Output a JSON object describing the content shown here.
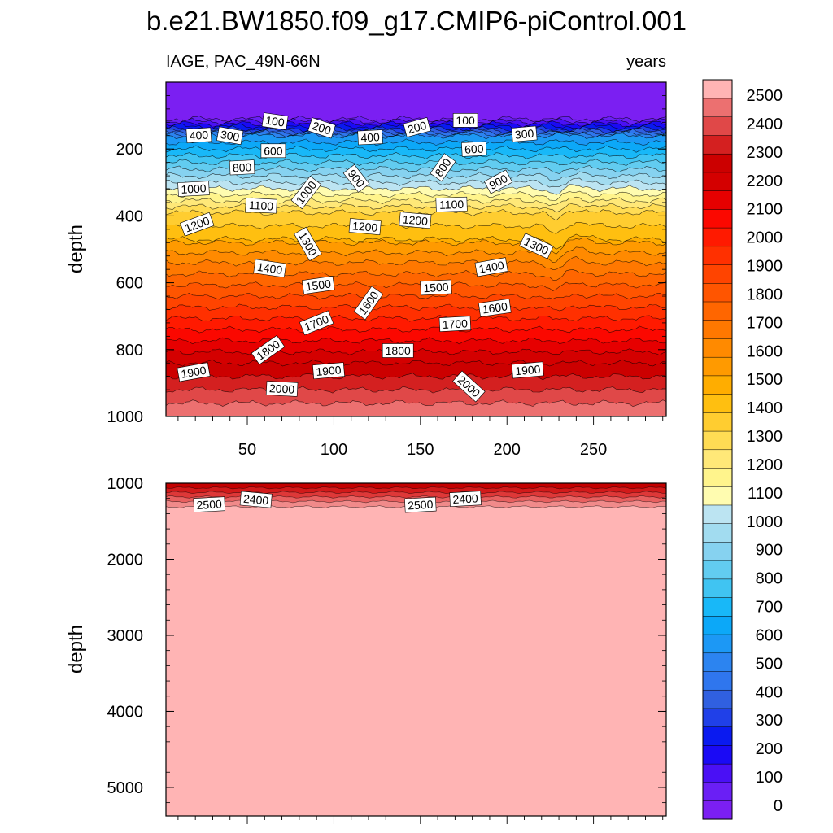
{
  "chart_data": {
    "type": "heatmap",
    "title": "b.e21.BW1850.f09_g17.CMIP6-piControl.001",
    "variable_label": "IAGE, PAC_49N-66N",
    "units_label": "years",
    "x_range": [
      3,
      292
    ],
    "x_ticks": [
      50,
      100,
      150,
      200,
      250
    ],
    "x_tick_labels": [
      "50",
      "100",
      "150",
      "200",
      "250"
    ],
    "colorbar": {
      "levels": [
        0,
        100,
        200,
        300,
        400,
        500,
        600,
        700,
        800,
        900,
        1000,
        1100,
        1200,
        1300,
        1400,
        1500,
        1600,
        1700,
        1800,
        1900,
        2000,
        2100,
        2200,
        2300,
        2400,
        2500
      ],
      "labels": [
        "0",
        "100",
        "200",
        "300",
        "400",
        "500",
        "600",
        "700",
        "800",
        "900",
        "1000",
        "1100",
        "1200",
        "1300",
        "1400",
        "1500",
        "1600",
        "1700",
        "1800",
        "1900",
        "2000",
        "2100",
        "2200",
        "2300",
        "2400",
        "2500"
      ]
    },
    "colors": [
      "#7b1ff2",
      "#6a1ff5",
      "#4a10f5",
      "#1a0af5",
      "#0a1af0",
      "#2040e8",
      "#3060e0",
      "#2f76ee",
      "#2c84f0",
      "#1c98f5",
      "#0ca8f8",
      "#18b8f8",
      "#40c4f2",
      "#62ccf0",
      "#86d2f0",
      "#a2dcf0",
      "#bce4f2",
      "#fffcb0",
      "#fff48c",
      "#ffe878",
      "#ffdc54",
      "#ffcd30",
      "#ffbf10",
      "#ffad00",
      "#ff9a00",
      "#ff8a00",
      "#ff7800",
      "#ff6600",
      "#ff5500",
      "#ff4400",
      "#ff3000",
      "#ff1a00",
      "#fb0800",
      "#e60000",
      "#d40000",
      "#cc0000",
      "#d42020",
      "#e04848",
      "#ec7070",
      "#ffb4b4"
    ],
    "panels": [
      {
        "name": "upper",
        "ylabel": "depth",
        "y_range": [
          0,
          1000
        ],
        "y_ticks": [
          200,
          400,
          600,
          800,
          1000
        ],
        "y_tick_labels": [
          "200",
          "400",
          "600",
          "800",
          "1000"
        ],
        "contour_labels": [
          {
            "text": "100",
            "x": 66,
            "y": 117,
            "rot": 8
          },
          {
            "text": "100",
            "x": 176,
            "y": 114,
            "rot": 0
          },
          {
            "text": "200",
            "x": 93,
            "y": 137,
            "rot": 18
          },
          {
            "text": "200",
            "x": 148,
            "y": 135,
            "rot": -15
          },
          {
            "text": "300",
            "x": 40,
            "y": 160,
            "rot": 10
          },
          {
            "text": "300",
            "x": 210,
            "y": 155,
            "rot": -5
          },
          {
            "text": "400",
            "x": 22,
            "y": 159,
            "rot": -4
          },
          {
            "text": "400",
            "x": 121,
            "y": 165,
            "rot": -3
          },
          {
            "text": "600",
            "x": 65,
            "y": 205,
            "rot": 0
          },
          {
            "text": "600",
            "x": 181,
            "y": 200,
            "rot": -3
          },
          {
            "text": "800",
            "x": 47,
            "y": 255,
            "rot": -3
          },
          {
            "text": "800",
            "x": 163,
            "y": 255,
            "rot": -55
          },
          {
            "text": "900",
            "x": 113,
            "y": 288,
            "rot": 52
          },
          {
            "text": "900",
            "x": 195,
            "y": 298,
            "rot": -28
          },
          {
            "text": "1000",
            "x": 19,
            "y": 319,
            "rot": -3
          },
          {
            "text": "1000",
            "x": 84,
            "y": 330,
            "rot": -52
          },
          {
            "text": "1100",
            "x": 58,
            "y": 369,
            "rot": 3
          },
          {
            "text": "1100",
            "x": 168,
            "y": 366,
            "rot": -2
          },
          {
            "text": "1200",
            "x": 21,
            "y": 425,
            "rot": -20
          },
          {
            "text": "1200",
            "x": 118,
            "y": 432,
            "rot": 5
          },
          {
            "text": "1200",
            "x": 147,
            "y": 413,
            "rot": 5
          },
          {
            "text": "1300",
            "x": 85,
            "y": 484,
            "rot": 60
          },
          {
            "text": "1300",
            "x": 217,
            "y": 490,
            "rot": 25
          },
          {
            "text": "1400",
            "x": 63,
            "y": 557,
            "rot": 8
          },
          {
            "text": "1400",
            "x": 191,
            "y": 553,
            "rot": -10
          },
          {
            "text": "1500",
            "x": 91,
            "y": 607,
            "rot": -8
          },
          {
            "text": "1500",
            "x": 159,
            "y": 614,
            "rot": -3
          },
          {
            "text": "1600",
            "x": 120,
            "y": 660,
            "rot": -55
          },
          {
            "text": "1600",
            "x": 193,
            "y": 675,
            "rot": -8
          },
          {
            "text": "1700",
            "x": 90,
            "y": 720,
            "rot": -22
          },
          {
            "text": "1700",
            "x": 170,
            "y": 723,
            "rot": -3
          },
          {
            "text": "1800",
            "x": 62,
            "y": 801,
            "rot": -35
          },
          {
            "text": "1800",
            "x": 137,
            "y": 803,
            "rot": 0
          },
          {
            "text": "1900",
            "x": 19,
            "y": 867,
            "rot": -10
          },
          {
            "text": "1900",
            "x": 97,
            "y": 863,
            "rot": -5
          },
          {
            "text": "1900",
            "x": 212,
            "y": 861,
            "rot": -5
          },
          {
            "text": "2000",
            "x": 70,
            "y": 917,
            "rot": 3
          },
          {
            "text": "2000",
            "x": 178,
            "y": 910,
            "rot": 42
          }
        ]
      },
      {
        "name": "lower",
        "ylabel": "depth",
        "y_range": [
          1000,
          5375
        ],
        "y_ticks": [
          1000,
          2000,
          3000,
          4000,
          5000
        ],
        "y_tick_labels": [
          "1000",
          "2000",
          "3000",
          "4000",
          "5000"
        ],
        "contour_labels": [
          {
            "text": "2500",
            "x": 28,
            "y": 1280,
            "rot": -3
          },
          {
            "text": "2400",
            "x": 55,
            "y": 1215,
            "rot": 5
          },
          {
            "text": "2500",
            "x": 150,
            "y": 1285,
            "rot": -3
          },
          {
            "text": "2400",
            "x": 176,
            "y": 1205,
            "rot": -3
          }
        ]
      }
    ]
  }
}
